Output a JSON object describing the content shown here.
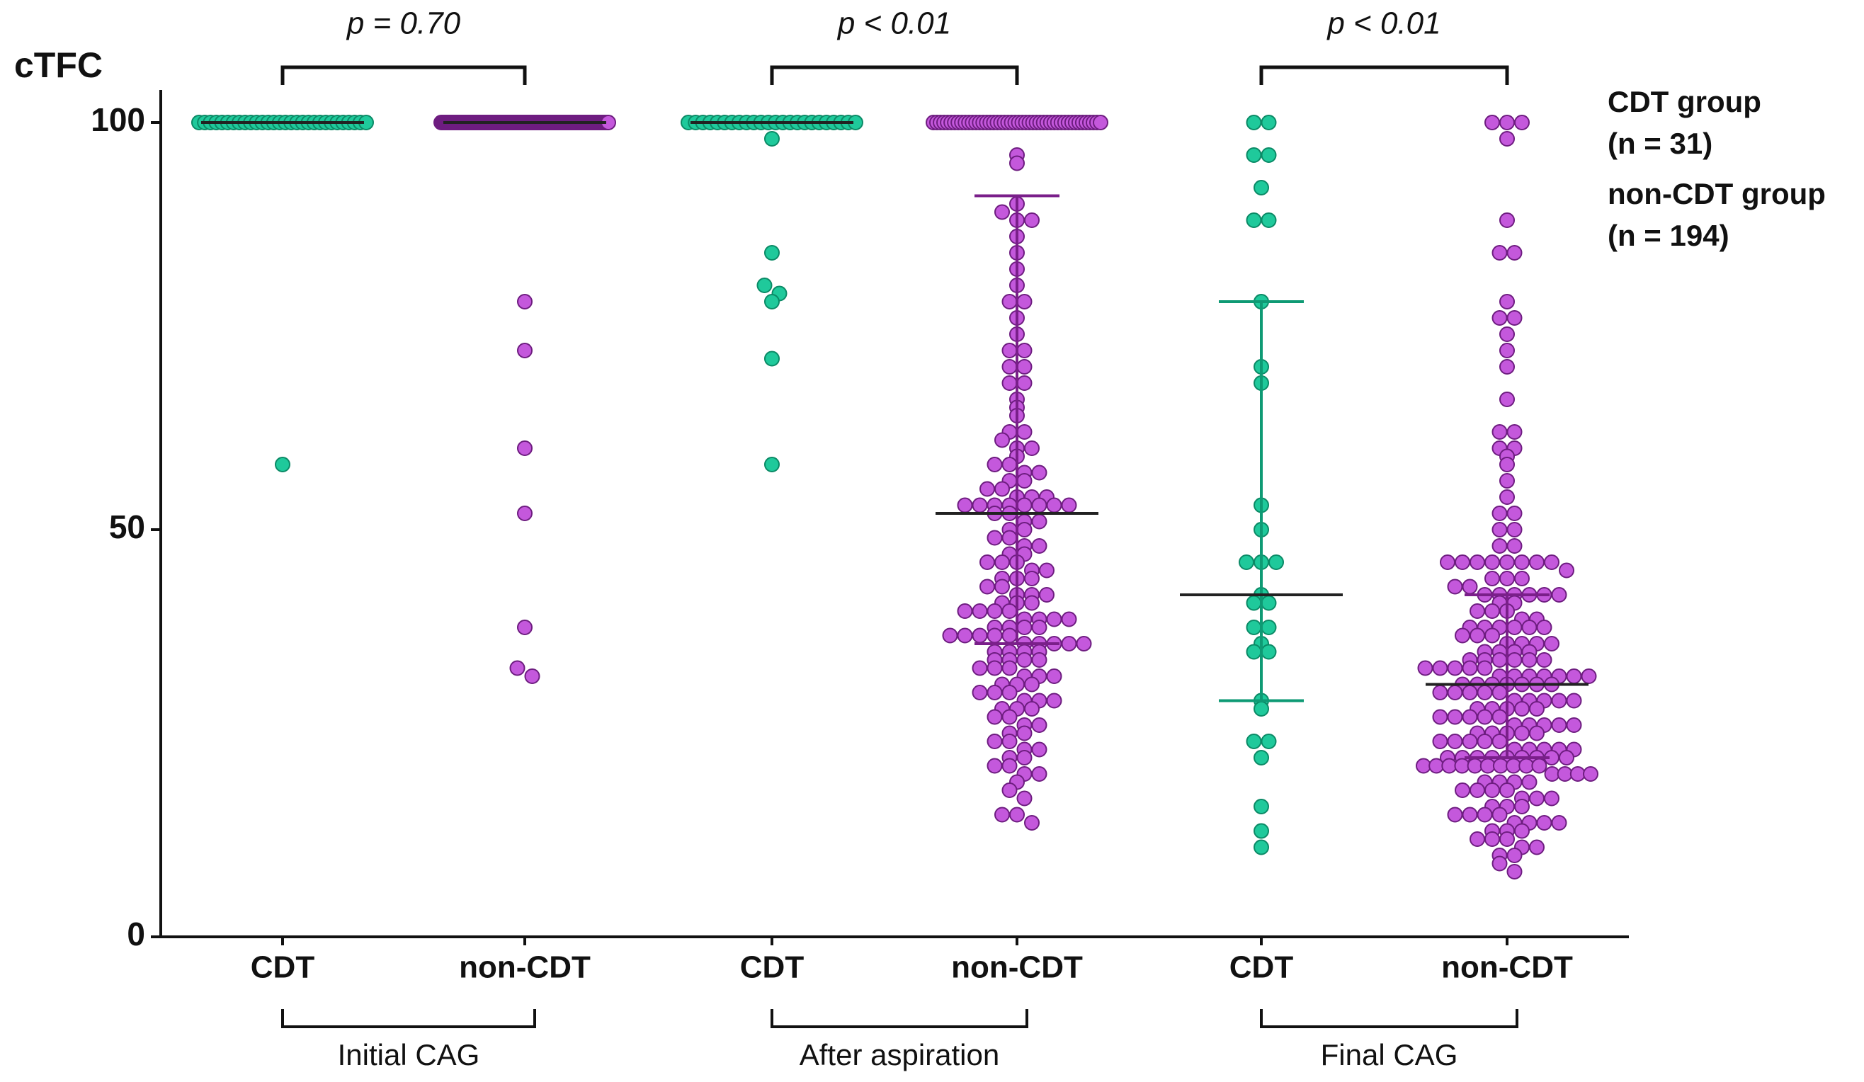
{
  "chart_data": {
    "type": "strip",
    "ylabel": "cTFC",
    "ylim": [
      0,
      104
    ],
    "yticks": [
      0,
      50,
      100
    ],
    "categories": [
      "CDT",
      "non-CDT",
      "CDT",
      "non-CDT",
      "CDT",
      "non-CDT"
    ],
    "stages": [
      "Initial CAG",
      "After aspiration",
      "Final CAG"
    ],
    "comparisons": [
      "p = 0.70",
      "p < 0.01",
      "p < 0.01"
    ],
    "series": [
      {
        "name": "CDT group",
        "n_label": "(n = 31)",
        "color": "#1fc99b",
        "edge": "#0b8a66",
        "values": [
          [
            100,
            100,
            100,
            100,
            100,
            100,
            100,
            100,
            100,
            100,
            100,
            100,
            100,
            100,
            100,
            100,
            100,
            100,
            100,
            100,
            100,
            100,
            100,
            100,
            100,
            100,
            100,
            100,
            100,
            100,
            58
          ],
          [
            100,
            100,
            100,
            100,
            100,
            100,
            100,
            100,
            100,
            100,
            100,
            100,
            100,
            100,
            100,
            100,
            100,
            100,
            100,
            100,
            100,
            100,
            100,
            100,
            98,
            84,
            80,
            79,
            78,
            71,
            58
          ],
          [
            100,
            100,
            96,
            96,
            92,
            88,
            88,
            78,
            70,
            68,
            53,
            50,
            46,
            46,
            46,
            42,
            41,
            41,
            38,
            38,
            36,
            35,
            35,
            29,
            28,
            24,
            24,
            22,
            16,
            13,
            11
          ]
        ],
        "median": [
          100,
          100,
          42
        ],
        "q1": [
          100,
          100,
          29
        ],
        "q3": [
          100,
          100,
          78
        ]
      },
      {
        "name": "non-CDT group",
        "n_label": "(n = 194)",
        "color": "#c458dc",
        "edge": "#6e1d80",
        "values": [
          [
            100,
            100,
            100,
            100,
            100,
            100,
            100,
            100,
            100,
            100,
            100,
            100,
            100,
            100,
            100,
            100,
            100,
            100,
            100,
            100,
            100,
            100,
            100,
            100,
            100,
            100,
            100,
            100,
            100,
            100,
            100,
            100,
            100,
            100,
            100,
            100,
            100,
            100,
            100,
            100,
            100,
            100,
            100,
            100,
            100,
            100,
            100,
            100,
            100,
            100,
            100,
            100,
            100,
            100,
            100,
            100,
            100,
            100,
            100,
            100,
            100,
            100,
            100,
            100,
            100,
            100,
            100,
            100,
            100,
            100,
            100,
            100,
            100,
            100,
            100,
            100,
            100,
            100,
            100,
            100,
            100,
            100,
            100,
            100,
            100,
            100,
            100,
            100,
            100,
            100,
            100,
            100,
            100,
            100,
            100,
            100,
            100,
            100,
            100,
            100,
            100,
            100,
            100,
            100,
            100,
            100,
            100,
            100,
            100,
            100,
            100,
            100,
            100,
            100,
            100,
            100,
            100,
            100,
            100,
            100,
            100,
            100,
            100,
            100,
            100,
            100,
            100,
            100,
            100,
            100,
            100,
            100,
            100,
            100,
            100,
            100,
            100,
            100,
            100,
            100,
            100,
            100,
            100,
            100,
            100,
            100,
            100,
            100,
            100,
            100,
            100,
            100,
            100,
            100,
            100,
            100,
            100,
            100,
            100,
            100,
            100,
            100,
            100,
            100,
            100,
            100,
            100,
            100,
            100,
            100,
            100,
            100,
            100,
            100,
            100,
            100,
            100,
            100,
            100,
            100,
            100,
            100,
            100,
            100,
            100,
            100,
            100,
            78,
            72,
            60,
            52,
            38,
            33,
            32
          ],
          [
            100,
            100,
            100,
            100,
            100,
            100,
            100,
            100,
            100,
            100,
            100,
            100,
            100,
            100,
            100,
            100,
            100,
            100,
            100,
            100,
            100,
            100,
            100,
            100,
            100,
            100,
            100,
            100,
            100,
            100,
            100,
            100,
            100,
            100,
            100,
            100,
            100,
            100,
            100,
            100,
            100,
            100,
            100,
            100,
            100,
            100,
            100,
            100,
            96,
            95,
            90,
            89,
            88,
            88,
            86,
            84,
            82,
            80,
            78,
            78,
            76,
            74,
            72,
            72,
            70,
            70,
            68,
            68,
            66,
            65,
            64,
            62,
            62,
            61,
            60,
            60,
            59,
            58,
            58,
            57,
            57,
            56,
            56,
            55,
            55,
            54,
            54,
            54,
            53,
            53,
            53,
            53,
            53,
            53,
            53,
            53,
            52,
            52,
            51,
            51,
            50,
            50,
            49,
            49,
            48,
            48,
            47,
            47,
            46,
            46,
            46,
            45,
            45,
            44,
            44,
            44,
            43,
            43,
            42,
            42,
            42,
            41,
            41,
            41,
            40,
            40,
            40,
            40,
            39,
            39,
            39,
            39,
            38,
            38,
            38,
            38,
            37,
            37,
            37,
            37,
            37,
            36,
            36,
            36,
            36,
            36,
            35,
            35,
            35,
            35,
            34,
            34,
            34,
            34,
            33,
            33,
            33,
            32,
            32,
            32,
            31,
            31,
            31,
            30,
            30,
            30,
            29,
            29,
            29,
            28,
            28,
            28,
            27,
            27,
            26,
            26,
            25,
            25,
            24,
            24,
            23,
            23,
            22,
            22,
            21,
            21,
            20,
            20,
            19,
            18,
            17,
            15,
            15,
            14
          ],
          [
            100,
            100,
            100,
            98,
            88,
            84,
            84,
            78,
            76,
            76,
            74,
            72,
            70,
            66,
            62,
            62,
            60,
            60,
            59,
            58,
            56,
            54,
            52,
            52,
            50,
            50,
            48,
            48,
            46,
            46,
            46,
            46,
            46,
            46,
            46,
            46,
            45,
            44,
            44,
            44,
            43,
            43,
            42,
            42,
            42,
            42,
            42,
            42,
            41,
            41,
            40,
            40,
            40,
            39,
            39,
            38,
            38,
            38,
            38,
            38,
            38,
            37,
            37,
            37,
            36,
            36,
            36,
            36,
            35,
            35,
            35,
            35,
            34,
            34,
            34,
            34,
            34,
            34,
            33,
            33,
            33,
            33,
            33,
            32,
            32,
            32,
            32,
            32,
            32,
            32,
            31,
            31,
            31,
            31,
            31,
            31,
            31,
            30,
            30,
            30,
            30,
            30,
            29,
            29,
            29,
            29,
            29,
            28,
            28,
            28,
            28,
            28,
            27,
            27,
            27,
            27,
            27,
            26,
            26,
            26,
            26,
            26,
            25,
            25,
            25,
            25,
            25,
            24,
            24,
            24,
            24,
            24,
            23,
            23,
            23,
            23,
            23,
            22,
            22,
            22,
            22,
            22,
            22,
            22,
            22,
            22,
            21,
            21,
            21,
            21,
            21,
            21,
            21,
            21,
            21,
            21,
            20,
            20,
            20,
            20,
            19,
            19,
            19,
            19,
            18,
            18,
            18,
            18,
            17,
            17,
            17,
            16,
            16,
            16,
            15,
            15,
            15,
            15,
            14,
            14,
            14,
            14,
            13,
            13,
            13,
            12,
            12,
            12,
            11,
            11,
            10,
            10,
            9,
            8
          ]
        ],
        "median": [
          100,
          52,
          31
        ],
        "q1": [
          100,
          36,
          22
        ],
        "q3": [
          100,
          91,
          42
        ]
      }
    ]
  }
}
